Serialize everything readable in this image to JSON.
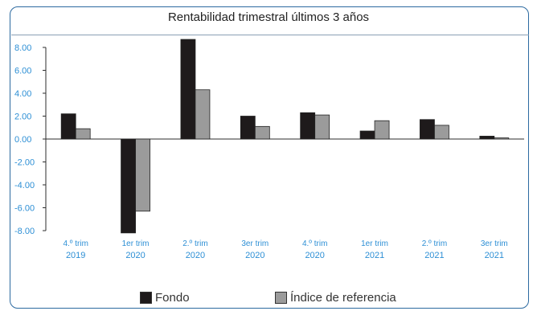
{
  "chart_data": {
    "type": "bar",
    "title": "Rentabilidad trimestral últimos 3 años",
    "categories": [
      [
        "4.º trim",
        "2019"
      ],
      [
        "1er trim",
        "2020"
      ],
      [
        "2.º trim",
        "2020"
      ],
      [
        "3er trim",
        "2020"
      ],
      [
        "4.º trim",
        "2020"
      ],
      [
        "1er trim",
        "2021"
      ],
      [
        "2.º trim",
        "2021"
      ],
      [
        "3er trim",
        "2021"
      ]
    ],
    "series": [
      {
        "name": "Fondo",
        "color": "#1e1a1b",
        "values": [
          2.2,
          -8.2,
          8.7,
          2.0,
          2.3,
          0.7,
          1.7,
          0.25
        ]
      },
      {
        "name": "Índice de referencia",
        "color": "#9b9b9b",
        "values": [
          0.9,
          -6.3,
          4.3,
          1.1,
          2.1,
          1.6,
          1.2,
          0.1
        ]
      }
    ],
    "yticks": [
      "8.00",
      "6.00",
      "4.00",
      "2.00",
      "0.00",
      "-2.00",
      "-4.00",
      "-6.00",
      "-8.00"
    ],
    "ylim": [
      -8,
      8
    ],
    "grid": false,
    "legend_position": "bottom"
  }
}
